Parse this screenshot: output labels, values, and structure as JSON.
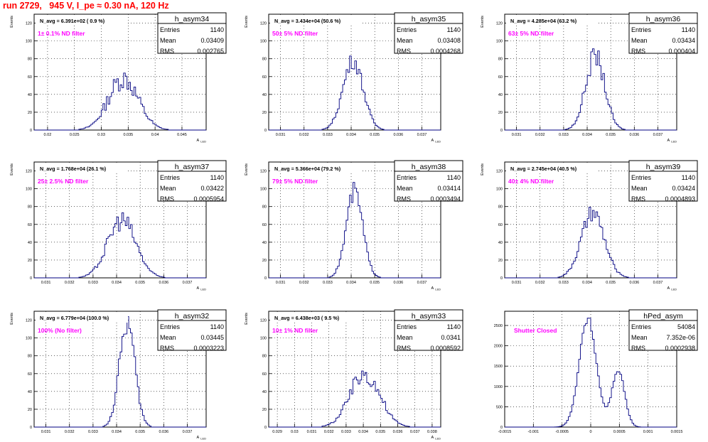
{
  "header": "run 2729,   945 V, I_pe ≈ 0.30 nA, 120 Hz",
  "colors": {
    "hist_line": "#000080",
    "annotation": "#ff00ff",
    "header": "#ff0000",
    "frame": "#000000",
    "grid": "#000000"
  },
  "chart_data": [
    {
      "type": "histogram",
      "name": "h_asym34",
      "title": "N_avg = 6.391e+02 ( 0.9 %)",
      "annotation": "1± 0.1% ND filter",
      "stats": {
        "entries": "1140",
        "mean": "0.03409",
        "rms": "0.002765"
      },
      "xlabel": "A_LED",
      "ylabel": "Events",
      "xlim": [
        0.0175,
        0.0495
      ],
      "ylim": [
        0,
        130
      ],
      "xticks": [
        "0.02",
        "0.025",
        "0.03",
        "0.035",
        "0.04",
        "0.045"
      ],
      "yticks": [
        "0",
        "20",
        "40",
        "60",
        "80",
        "100",
        "120"
      ],
      "grid": true,
      "mean": 0.03409,
      "sigma": 0.002765,
      "peak": 58,
      "jitter": 0.22
    },
    {
      "type": "histogram",
      "name": "h_asym35",
      "title": "N_avg = 3.434e+04 (50.6 %)",
      "annotation": "50± 5% ND filter",
      "stats": {
        "entries": "1140",
        "mean": "0.03408",
        "rms": "0.0004268"
      },
      "xlabel": "A_LED",
      "ylabel": "Events",
      "xlim": [
        0.0305,
        0.0378
      ],
      "ylim": [
        0,
        130
      ],
      "xticks": [
        "0.031",
        "0.032",
        "0.033",
        "0.034",
        "0.035",
        "0.036",
        "0.037"
      ],
      "yticks": [
        "0",
        "20",
        "40",
        "60",
        "80",
        "100",
        "120"
      ],
      "grid": true,
      "mean": 0.03408,
      "sigma": 0.0004268,
      "peak": 78,
      "jitter": 0.12
    },
    {
      "type": "histogram",
      "name": "h_asym36",
      "title": "N_avg = 4.285e+04 (63.2 %)",
      "annotation": "63± 5% ND filter",
      "stats": {
        "entries": "1140",
        "mean": "0.03434",
        "rms": "0.000404"
      },
      "xlabel": "A_LED",
      "ylabel": "Events",
      "xlim": [
        0.0305,
        0.0378
      ],
      "ylim": [
        0,
        130
      ],
      "xticks": [
        "0.031",
        "0.032",
        "0.033",
        "0.034",
        "0.035",
        "0.036",
        "0.037"
      ],
      "yticks": [
        "0",
        "20",
        "40",
        "60",
        "80",
        "100",
        "120"
      ],
      "grid": true,
      "mean": 0.03434,
      "sigma": 0.000404,
      "peak": 83,
      "jitter": 0.14
    },
    {
      "type": "histogram",
      "name": "h_asym37",
      "title": "N_avg = 1.768e+04 (26.1 %)",
      "annotation": "25± 2.5% ND filter",
      "stats": {
        "entries": "1140",
        "mean": "0.03422",
        "rms": "0.0005954"
      },
      "xlabel": "A_LED",
      "ylabel": "Events",
      "xlim": [
        0.0305,
        0.0378
      ],
      "ylim": [
        0,
        130
      ],
      "xticks": [
        "0.031",
        "0.032",
        "0.033",
        "0.034",
        "0.035",
        "0.036",
        "0.037"
      ],
      "yticks": [
        "0",
        "20",
        "40",
        "60",
        "80",
        "100",
        "120"
      ],
      "grid": true,
      "mean": 0.03422,
      "sigma": 0.0005954,
      "peak": 65,
      "jitter": 0.18
    },
    {
      "type": "histogram",
      "name": "h_asym38",
      "title": "N_avg = 5.366e+04 (79.2 %)",
      "annotation": "79± 5% ND filter",
      "stats": {
        "entries": "1140",
        "mean": "0.03414",
        "rms": "0.0003494"
      },
      "xlabel": "A_LED",
      "ylabel": "Events",
      "xlim": [
        0.0305,
        0.0378
      ],
      "ylim": [
        0,
        130
      ],
      "xticks": [
        "0.031",
        "0.032",
        "0.033",
        "0.034",
        "0.035",
        "0.036",
        "0.037"
      ],
      "yticks": [
        "0",
        "20",
        "40",
        "60",
        "80",
        "100",
        "120"
      ],
      "grid": true,
      "mean": 0.03414,
      "sigma": 0.0003494,
      "peak": 96,
      "jitter": 0.12
    },
    {
      "type": "histogram",
      "name": "h_asym39",
      "title": "N_avg = 2.745e+04 (40.5 %)",
      "annotation": "40± 4% ND filter",
      "stats": {
        "entries": "1140",
        "mean": "0.03424",
        "rms": "0.0004893"
      },
      "xlabel": "A_LED",
      "ylabel": "Events",
      "xlim": [
        0.0305,
        0.0378
      ],
      "ylim": [
        0,
        130
      ],
      "xticks": [
        "0.031",
        "0.032",
        "0.033",
        "0.034",
        "0.035",
        "0.036",
        "0.037"
      ],
      "yticks": [
        "0",
        "20",
        "40",
        "60",
        "80",
        "100",
        "120"
      ],
      "grid": true,
      "mean": 0.03424,
      "sigma": 0.0004893,
      "peak": 72,
      "jitter": 0.14
    },
    {
      "type": "histogram",
      "name": "h_asym32",
      "title": "N_avg = 6.779e+04 (100.0 %)",
      "annotation": "100% (No filter)",
      "stats": {
        "entries": "1140",
        "mean": "0.03445",
        "rms": "0.0003223"
      },
      "xlabel": "A_LED",
      "ylabel": "Events",
      "xlim": [
        0.0305,
        0.0378
      ],
      "ylim": [
        0,
        130
      ],
      "xticks": [
        "0.031",
        "0.032",
        "0.033",
        "0.034",
        "0.035",
        "0.036",
        "0.037"
      ],
      "yticks": [
        "0",
        "20",
        "40",
        "60",
        "80",
        "100",
        "120"
      ],
      "grid": true,
      "mean": 0.03445,
      "sigma": 0.0003223,
      "peak": 118,
      "jitter": 0.12
    },
    {
      "type": "histogram",
      "name": "h_asym33",
      "title": "N_avg = 6.438e+03 ( 9.5 %)",
      "annotation": "10± 1% ND filter",
      "stats": {
        "entries": "1140",
        "mean": "0.0341",
        "rms": "0.0008592"
      },
      "xlabel": "A_LED",
      "ylabel": "Events",
      "xlim": [
        0.0285,
        0.0385
      ],
      "ylim": [
        0,
        130
      ],
      "xticks": [
        "0.029",
        "0.03",
        "0.031",
        "0.032",
        "0.033",
        "0.034",
        "0.035",
        "0.036",
        "0.037",
        "0.038"
      ],
      "yticks": [
        "0",
        "20",
        "40",
        "60",
        "80",
        "100",
        "120"
      ],
      "grid": true,
      "mean": 0.0341,
      "sigma": 0.0008592,
      "peak": 60,
      "jitter": 0.2
    },
    {
      "type": "histogram",
      "name": "hPed_asym",
      "title": "",
      "annotation": "Shutter Closed",
      "stats": {
        "entries": "54084",
        "mean": "7.352e-06",
        "rms": "0.0002938"
      },
      "xlabel": "",
      "ylabel": "",
      "xlim": [
        -0.0015,
        0.0015
      ],
      "ylim": [
        0,
        2850
      ],
      "xticks": [
        "-0.0015",
        "-0.001",
        "-0.0005",
        "0",
        "0.0005",
        "0.001",
        "0.0015"
      ],
      "yticks": [
        "0",
        "500",
        "1000",
        "1500",
        "2000",
        "2500"
      ],
      "grid": true,
      "bimodal": [
        {
          "mean": -5e-05,
          "sigma": 0.00015,
          "peak": 2650
        },
        {
          "mean": 0.00048,
          "sigma": 0.00011,
          "peak": 1400
        }
      ],
      "jitter": 0.04
    }
  ]
}
